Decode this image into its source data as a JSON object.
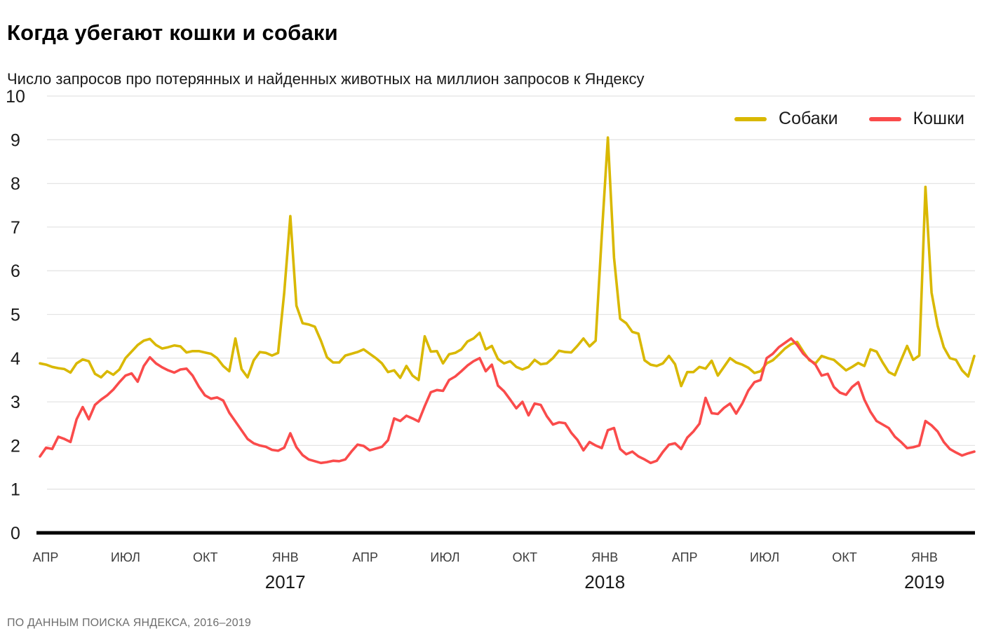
{
  "page": {
    "title": "Когда убегают кошки и собаки",
    "subtitle": "Число запросов про потерянных и найденных животных на миллион запросов к Яндексу",
    "source": "ПО ДАННЫМ ПОИСКА ЯНДЕКСА, 2016–2019"
  },
  "legend": {
    "items": [
      {
        "label": "Собаки",
        "color": "#D9B800"
      },
      {
        "label": "Кошки",
        "color": "#FA4B4B"
      }
    ]
  },
  "chart_data": {
    "type": "line",
    "title": "Когда убегают кошки и собаки",
    "subtitle": "Число запросов про потерянных и найденных животных на миллион запросов к Яндексу",
    "source": "ПО ДАННЫМ ПОИСКА ЯНДЕКСА, 2016–2019",
    "x_unit": "weekly samples, April 2016 — March 2019",
    "ylim": [
      0,
      10
    ],
    "yticks": [
      0,
      1,
      2,
      3,
      4,
      5,
      6,
      7,
      8,
      9,
      10
    ],
    "grid": "horizontal",
    "legend_position": "top-right",
    "month_ticks": [
      {
        "label": "АПР",
        "m": 0
      },
      {
        "label": "ИЮЛ",
        "m": 3
      },
      {
        "label": "ОКТ",
        "m": 6
      },
      {
        "label": "ЯНВ",
        "m": 9
      },
      {
        "label": "АПР",
        "m": 12
      },
      {
        "label": "ИЮЛ",
        "m": 15
      },
      {
        "label": "ОКТ",
        "m": 18
      },
      {
        "label": "ЯНВ",
        "m": 21
      },
      {
        "label": "АПР",
        "m": 24
      },
      {
        "label": "ИЮЛ",
        "m": 27
      },
      {
        "label": "ОКТ",
        "m": 30
      },
      {
        "label": "ЯНВ",
        "m": 33
      }
    ],
    "year_ticks": [
      {
        "label": "2017",
        "m": 9
      },
      {
        "label": "2018",
        "m": 21
      },
      {
        "label": "2019",
        "m": 33
      }
    ],
    "annotations": {
      "new_year_dog_peaks": [
        {
          "date": "early Jan 2017",
          "value": 7.25
        },
        {
          "date": "early Jan 2018",
          "value": 9.05
        },
        {
          "date": "early Jan 2019",
          "value": 7.92
        }
      ],
      "summer_cat_peaks": [
        {
          "date": "Aug 2016",
          "value": 4.0
        },
        {
          "date": "Aug 2017",
          "value": 4.0
        },
        {
          "date": "Aug 2018",
          "value": 4.45
        }
      ]
    },
    "series": [
      {
        "name": "Собаки",
        "key": "dogs-line",
        "color": "#D9B800",
        "values": [
          3.88,
          3.85,
          3.8,
          3.77,
          3.75,
          3.67,
          3.88,
          3.97,
          3.93,
          3.64,
          3.56,
          3.7,
          3.62,
          3.74,
          4.0,
          4.15,
          4.3,
          4.4,
          4.44,
          4.3,
          4.22,
          4.25,
          4.29,
          4.27,
          4.13,
          4.16,
          4.16,
          4.13,
          4.1,
          4.0,
          3.82,
          3.7,
          4.45,
          3.75,
          3.56,
          3.95,
          4.14,
          4.12,
          4.06,
          4.12,
          5.5,
          7.25,
          5.2,
          4.8,
          4.77,
          4.72,
          4.4,
          4.02,
          3.9,
          3.9,
          4.06,
          4.1,
          4.14,
          4.2,
          4.1,
          4.0,
          3.88,
          3.68,
          3.72,
          3.55,
          3.82,
          3.6,
          3.5,
          4.5,
          4.15,
          4.16,
          3.88,
          4.09,
          4.12,
          4.2,
          4.38,
          4.45,
          4.58,
          4.2,
          4.28,
          3.98,
          3.88,
          3.93,
          3.8,
          3.74,
          3.8,
          3.96,
          3.86,
          3.88,
          4.0,
          4.17,
          4.14,
          4.13,
          4.28,
          4.45,
          4.27,
          4.4,
          6.8,
          9.05,
          6.3,
          4.9,
          4.8,
          4.6,
          4.56,
          3.95,
          3.85,
          3.82,
          3.88,
          4.05,
          3.86,
          3.36,
          3.68,
          3.68,
          3.8,
          3.76,
          3.94,
          3.6,
          3.8,
          4.0,
          3.9,
          3.85,
          3.78,
          3.66,
          3.7,
          3.88,
          3.95,
          4.08,
          4.22,
          4.32,
          4.37,
          4.15,
          3.95,
          3.88,
          4.05,
          4.0,
          3.96,
          3.84,
          3.72,
          3.8,
          3.89,
          3.82,
          4.2,
          4.15,
          3.9,
          3.68,
          3.61,
          3.95,
          4.28,
          3.96,
          4.06,
          7.92,
          5.5,
          4.74,
          4.25,
          4.0,
          3.96,
          3.72,
          3.58,
          4.05
        ]
      },
      {
        "name": "Кошки",
        "key": "cats-line",
        "color": "#FA4B4B",
        "values": [
          1.75,
          1.95,
          1.92,
          2.2,
          2.15,
          2.08,
          2.6,
          2.88,
          2.6,
          2.93,
          3.05,
          3.15,
          3.28,
          3.45,
          3.6,
          3.65,
          3.46,
          3.82,
          4.02,
          3.88,
          3.79,
          3.72,
          3.67,
          3.74,
          3.76,
          3.6,
          3.35,
          3.15,
          3.07,
          3.1,
          3.03,
          2.75,
          2.55,
          2.35,
          2.15,
          2.05,
          2.0,
          1.97,
          1.9,
          1.88,
          1.95,
          2.28,
          1.96,
          1.78,
          1.68,
          1.64,
          1.6,
          1.62,
          1.65,
          1.64,
          1.68,
          1.86,
          2.02,
          1.99,
          1.89,
          1.93,
          1.97,
          2.12,
          2.62,
          2.56,
          2.68,
          2.62,
          2.55,
          2.9,
          3.22,
          3.27,
          3.25,
          3.5,
          3.58,
          3.7,
          3.83,
          3.93,
          4.0,
          3.7,
          3.85,
          3.37,
          3.24,
          3.05,
          2.85,
          3.0,
          2.69,
          2.96,
          2.93,
          2.67,
          2.48,
          2.53,
          2.51,
          2.29,
          2.13,
          1.89,
          2.08,
          2.0,
          1.94,
          2.35,
          2.4,
          1.92,
          1.8,
          1.86,
          1.75,
          1.68,
          1.6,
          1.65,
          1.85,
          2.02,
          2.05,
          1.92,
          2.18,
          2.32,
          2.5,
          3.09,
          2.74,
          2.72,
          2.86,
          2.96,
          2.73,
          2.96,
          3.26,
          3.45,
          3.5,
          4.0,
          4.1,
          4.25,
          4.35,
          4.45,
          4.3,
          4.1,
          3.97,
          3.85,
          3.6,
          3.64,
          3.34,
          3.21,
          3.16,
          3.34,
          3.45,
          3.05,
          2.77,
          2.56,
          2.48,
          2.4,
          2.2,
          2.08,
          1.94,
          1.96,
          2.0,
          2.56,
          2.46,
          2.32,
          2.08,
          1.92,
          1.84,
          1.77,
          1.82,
          1.86
        ]
      }
    ]
  }
}
